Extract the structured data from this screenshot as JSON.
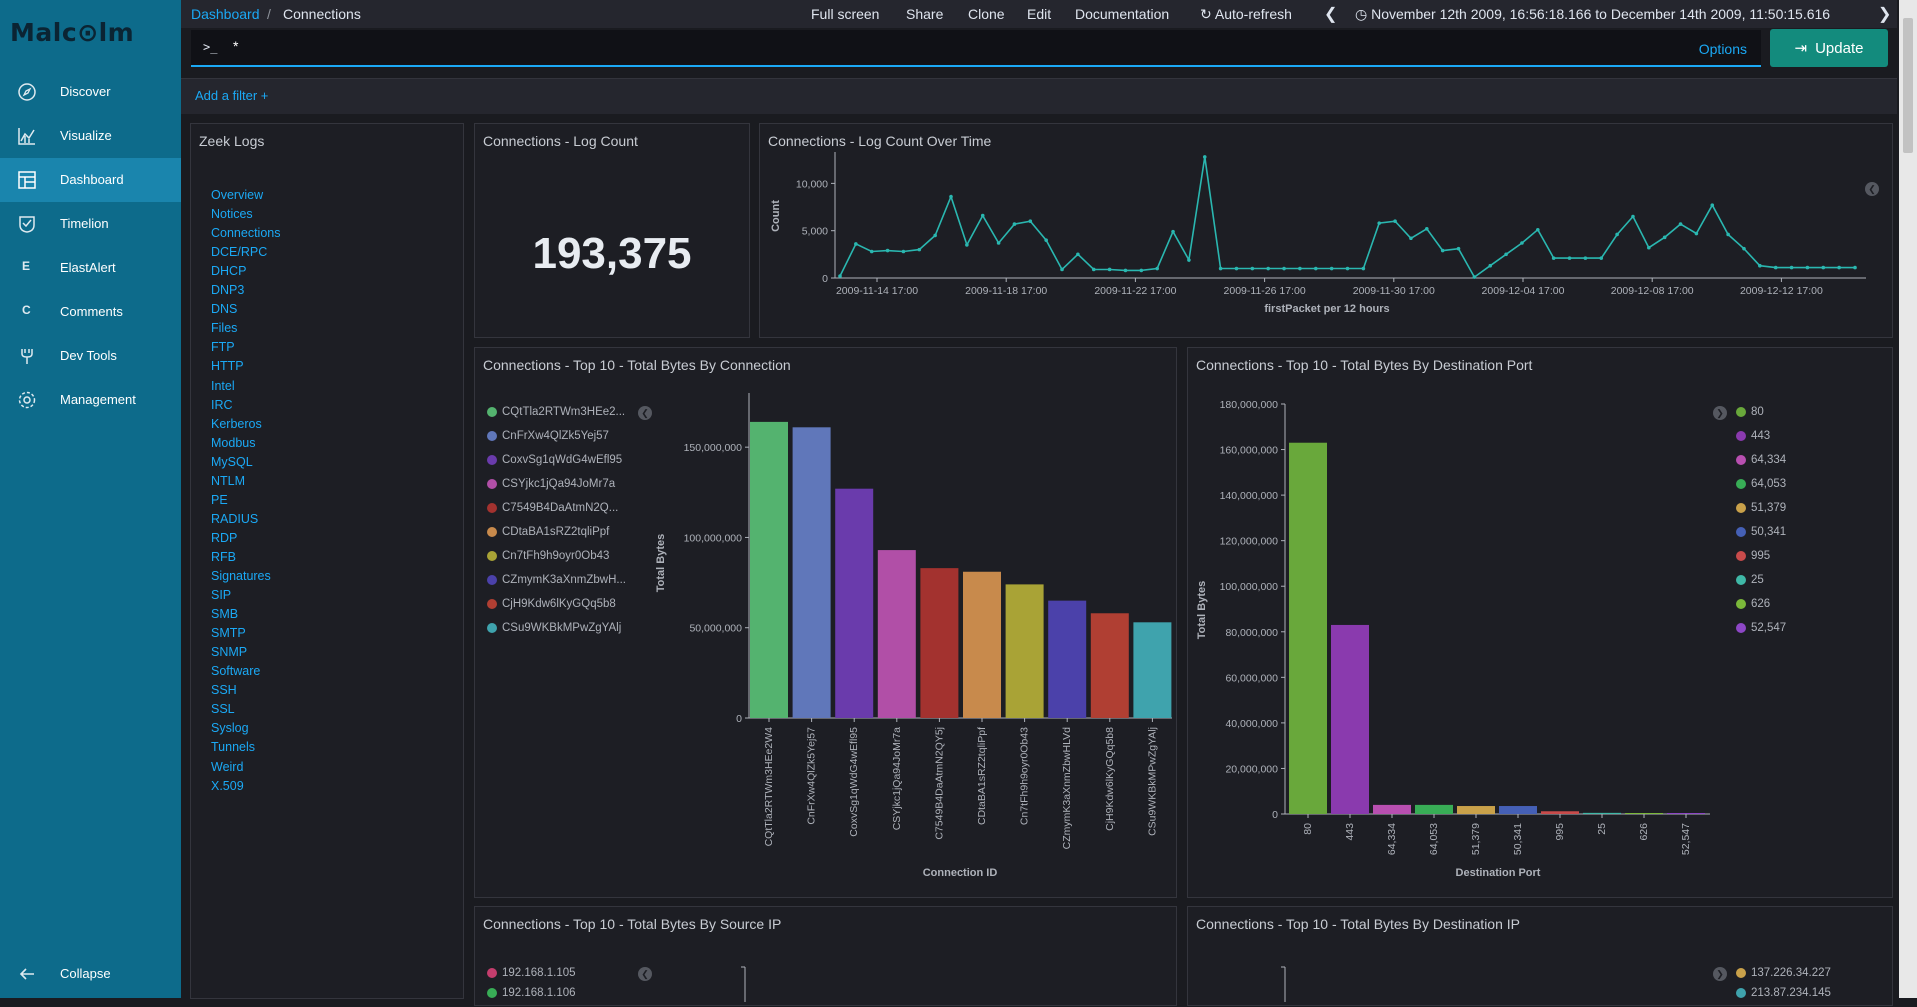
{
  "sidebar": {
    "logo": "Malc⊙lm",
    "items": [
      {
        "label": "Discover",
        "icon": "compass-icon"
      },
      {
        "label": "Visualize",
        "icon": "chart-icon"
      },
      {
        "label": "Dashboard",
        "icon": "dashboard-icon"
      },
      {
        "label": "Timelion",
        "icon": "timelion-icon"
      },
      {
        "label": "ElastAlert",
        "letter": "E"
      },
      {
        "label": "Comments",
        "letter": "C"
      },
      {
        "label": "Dev Tools",
        "icon": "wrench-icon"
      },
      {
        "label": "Management",
        "icon": "gear-icon"
      }
    ],
    "collapse": "Collapse"
  },
  "header": {
    "breadcrumb_parent": "Dashboard",
    "breadcrumb_sep": "/",
    "breadcrumb_current": "Connections",
    "menu": [
      "Full screen",
      "Share",
      "Clone",
      "Edit",
      "Documentation"
    ],
    "auto_refresh": "Auto-refresh",
    "time_range": "November 12th 2009, 16:56:18.166 to December 14th 2009, 11:50:15.616"
  },
  "query": {
    "prompt": ">_",
    "value": "*",
    "options": "Options",
    "update": "Update"
  },
  "filter": {
    "add": "Add a filter"
  },
  "zeek": {
    "title": "Zeek Logs",
    "links": [
      "Overview",
      "Notices",
      "Connections",
      "DCE/RPC",
      "DHCP",
      "DNP3",
      "DNS",
      "Files",
      "FTP",
      "HTTP",
      "Intel",
      "IRC",
      "Kerberos",
      "Modbus",
      "MySQL",
      "NTLM",
      "PE",
      "RADIUS",
      "RDP",
      "RFB",
      "Signatures",
      "SIP",
      "SMB",
      "SMTP",
      "SNMP",
      "Software",
      "SSH",
      "SSL",
      "Syslog",
      "Tunnels",
      "Weird",
      "X.509"
    ]
  },
  "panels": {
    "log_count_title": "Connections - Log Count",
    "log_count_value": "193,375",
    "over_time_title": "Connections - Log Count Over Time",
    "bytes_conn_title": "Connections - Top 10 - Total Bytes By Connection",
    "bytes_port_title": "Connections - Top 10 - Total Bytes By Destination Port",
    "bytes_srcip_title": "Connections - Top 10 - Total Bytes By Source IP",
    "bytes_dstip_title": "Connections - Top 10 - Total Bytes By Destination IP",
    "srcip_legend": [
      "192.168.1.105",
      "192.168.1.106"
    ],
    "dstip_legend": [
      "137.226.34.227",
      "213.87.234.145"
    ]
  },
  "chart_data": [
    {
      "type": "line",
      "title": "Connections - Log Count Over Time",
      "xlabel": "firstPacket per 12 hours",
      "ylabel": "Count",
      "ylim": [
        0,
        13000
      ],
      "yticks": [
        "0",
        "5,000",
        "10,000"
      ],
      "xticks": [
        "2009-11-14 17:00",
        "2009-11-18 17:00",
        "2009-11-22 17:00",
        "2009-11-26 17:00",
        "2009-11-30 17:00",
        "2009-12-04 17:00",
        "2009-12-08 17:00",
        "2009-12-12 17:00"
      ],
      "color": "#2ab7b0",
      "values": [
        200,
        3600,
        2800,
        2900,
        2800,
        3000,
        4500,
        8600,
        3500,
        6600,
        3700,
        5700,
        6000,
        4000,
        900,
        2500,
        900,
        900,
        800,
        800,
        1000,
        4900,
        1900,
        12800,
        1000,
        1000,
        1000,
        1000,
        1000,
        1000,
        1000,
        1000,
        1000,
        1000,
        5800,
        6000,
        4200,
        5200,
        2900,
        3100,
        100,
        1300,
        2500,
        3700,
        5100,
        2100,
        2100,
        2100,
        2100,
        4600,
        6500,
        3200,
        4300,
        5700,
        4700,
        7700,
        4600,
        3100,
        1300,
        1100,
        1100,
        1100,
        1100,
        1100,
        1100
      ]
    },
    {
      "type": "bar",
      "title": "Connections - Top 10 - Total Bytes By Connection",
      "xlabel": "Connection ID",
      "ylabel": "Total Bytes",
      "ylim": [
        0,
        180000000
      ],
      "yticks": [
        "0",
        "50,000,000",
        "100,000,000",
        "150,000,000"
      ],
      "categories": [
        "CQtTla2RTWm3HEe2W4",
        "CnFrXw4QlZk5Yej57",
        "CoxvSg1qWdG4wEfl95",
        "CSYjkc1jQa94JoMr7a",
        "C7549B4DaAtmN2QY5j",
        "CDtaBA1sRZ2tqliPpf",
        "Cn7tFh9h9oyr0Ob43",
        "CZmymK3aXnmZbwHLVd",
        "CjH9Kdw6lKyGQq5b8",
        "CSu9WKBkMPwZgYAlj"
      ],
      "legend": [
        "CQtTla2RTWm3HEe2...",
        "CnFrXw4QlZk5Yej57",
        "CoxvSg1qWdG4wEfl95",
        "CSYjkc1jQa94JoMr7a",
        "C7549B4DaAtmN2Q...",
        "CDtaBA1sRZ2tqliPpf",
        "Cn7tFh9h9oyr0Ob43",
        "CZmymK3aXnmZbwH...",
        "CjH9Kdw6lKyGQq5b8",
        "CSu9WKBkMPwZgYAlj"
      ],
      "values": [
        164000000,
        161000000,
        127000000,
        93000000,
        83000000,
        81000000,
        74000000,
        65000000,
        58000000,
        53000000
      ],
      "colors": [
        "#54b36f",
        "#6077ba",
        "#6a3bac",
        "#b14fa7",
        "#a3322f",
        "#c88a4c",
        "#a9a336",
        "#4b41aa",
        "#b03f33",
        "#3fa3ad"
      ]
    },
    {
      "type": "bar",
      "title": "Connections - Top 10 - Total Bytes By Destination Port",
      "xlabel": "Destination Port",
      "ylabel": "Total Bytes",
      "ylim": [
        0,
        180000000
      ],
      "yticks": [
        "0",
        "20,000,000",
        "40,000,000",
        "60,000,000",
        "80,000,000",
        "100,000,000",
        "120,000,000",
        "140,000,000",
        "160,000,000",
        "180,000,000"
      ],
      "categories": [
        "80",
        "443",
        "64,334",
        "64,053",
        "51,379",
        "50,341",
        "995",
        "25",
        "626",
        "52,547"
      ],
      "values": [
        163000000,
        83000000,
        4000000,
        4000000,
        3500000,
        3500000,
        1200000,
        500000,
        100000,
        50000
      ],
      "colors": [
        "#69a83b",
        "#8a3aae",
        "#b84fb0",
        "#38ad56",
        "#c9a14a",
        "#4560b6",
        "#c84b4b",
        "#3fb8a7",
        "#7bb83a",
        "#8d47c6"
      ]
    }
  ]
}
